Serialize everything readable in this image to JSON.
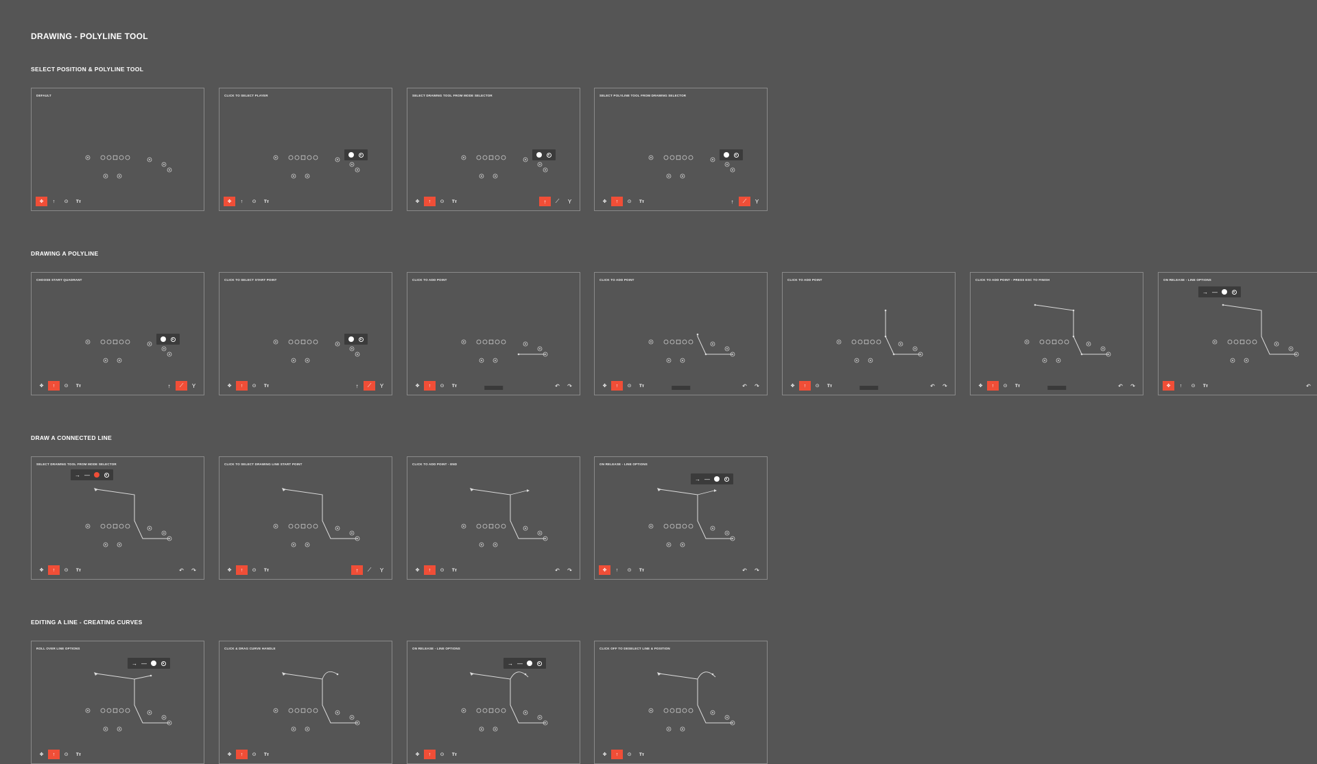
{
  "page_title": "DRAWING - POLYLINE TOOL",
  "sections": [
    {
      "title": "SELECT POSITION & POLYLINE TOOL",
      "frames": [
        {
          "title": "DEFAULT",
          "tool": 0,
          "sub": null,
          "line": null,
          "popup": null,
          "hint": false,
          "undo": false
        },
        {
          "title": "CLICK TO SELECT PLAYER",
          "tool": 0,
          "sub": null,
          "line": null,
          "popup": "player",
          "hint": false,
          "undo": false
        },
        {
          "title": "SELECT DRAWING TOOL FROM MODE SELECTOR",
          "tool": 1,
          "sub": 0,
          "line": null,
          "popup": "player",
          "hint": false,
          "undo": false
        },
        {
          "title": "SELECT POLYLINE TOOL FROM DRAWING SELECTOR",
          "tool": 1,
          "sub": 1,
          "line": null,
          "popup": "player",
          "hint": false,
          "undo": false
        }
      ]
    },
    {
      "title": "DRAWING A POLYLINE",
      "frames": [
        {
          "title": "CHOOSE START QUADRANT",
          "tool": 1,
          "sub": 1,
          "line": null,
          "popup": "player",
          "hint": false,
          "undo": false
        },
        {
          "title": "CLICK TO SELECT START POINT",
          "tool": 1,
          "sub": 1,
          "line": null,
          "popup": "player",
          "hint": false,
          "undo": false
        },
        {
          "title": "CLICK TO ADD POINT",
          "tool": 1,
          "sub": null,
          "line": "p1",
          "popup": null,
          "hint": true,
          "undo": true
        },
        {
          "title": "CLICK TO ADD POINT",
          "tool": 1,
          "sub": null,
          "line": "p2",
          "popup": null,
          "hint": true,
          "undo": true
        },
        {
          "title": "CLICK TO ADD POINT",
          "tool": 1,
          "sub": null,
          "line": "p3",
          "popup": null,
          "hint": true,
          "undo": true
        },
        {
          "title": "CLICK TO ADD POINT - PRESS ESC TO FINISH",
          "tool": 1,
          "sub": null,
          "line": "p4",
          "popup": null,
          "hint": true,
          "undo": true
        },
        {
          "title": "ON RELEASE - LINE OPTIONS",
          "tool": 0,
          "sub": null,
          "line": "p5",
          "popup": "line",
          "hint": false,
          "undo": true
        }
      ]
    },
    {
      "title": "DRAW A CONNECTED LINE",
      "frames": [
        {
          "title": "SELECT DRAWING TOOL FROM MODE SELECTOR",
          "tool": 1,
          "sub": null,
          "line": "full",
          "popup": "line-red",
          "hint": false,
          "undo": true
        },
        {
          "title": "CLICK TO SELECT DRAWING LINE START POINT",
          "tool": 1,
          "sub": 0,
          "line": "full",
          "popup": null,
          "hint": false,
          "undo": false
        },
        {
          "title": "CLICK TO ADD POINT - END",
          "tool": 1,
          "sub": null,
          "line": "full-ext",
          "popup": null,
          "hint": false,
          "undo": true
        },
        {
          "title": "ON RELEASE - LINE OPTIONS",
          "tool": 0,
          "sub": null,
          "line": "full-ext",
          "popup": "line",
          "hint": false,
          "undo": true
        }
      ]
    },
    {
      "title": "EDITING A LINE - CREATING CURVES",
      "frames": [
        {
          "title": "ROLL OVER LINE OPTIONS",
          "tool": 1,
          "sub": null,
          "line": "curve0",
          "popup": "line",
          "hint": false,
          "undo": false
        },
        {
          "title": "CLICK & DRAG CURVE HANDLE",
          "tool": 1,
          "sub": null,
          "line": "curve1",
          "popup": null,
          "hint": false,
          "undo": false
        },
        {
          "title": "ON RELEASE - LINE OPTIONS",
          "tool": 1,
          "sub": null,
          "line": "curve2",
          "popup": "line",
          "hint": false,
          "undo": false
        },
        {
          "title": "CLICK OFF TO DESELECT LINE & POSITION",
          "tool": 1,
          "sub": null,
          "line": "curve2",
          "popup": null,
          "hint": false,
          "undo": false
        }
      ]
    }
  ],
  "toolbar": {
    "icons": [
      "move-icon",
      "draw-arrow-icon",
      "player-icon",
      "text-icon"
    ],
    "glyphs": [
      "✥",
      "↑",
      "⊙",
      "Tт"
    ]
  },
  "subbar": {
    "icons": [
      "straight-arrow-icon",
      "polyline-icon",
      "branch-icon"
    ],
    "glyphs": [
      "↑",
      "⟋",
      "Y"
    ]
  },
  "undo_glyphs": [
    "↶",
    "↷"
  ],
  "colors": {
    "accent": "#f04e37",
    "background": "#555555",
    "frame_border": "#8a8a8a",
    "line": "#dddddd"
  }
}
